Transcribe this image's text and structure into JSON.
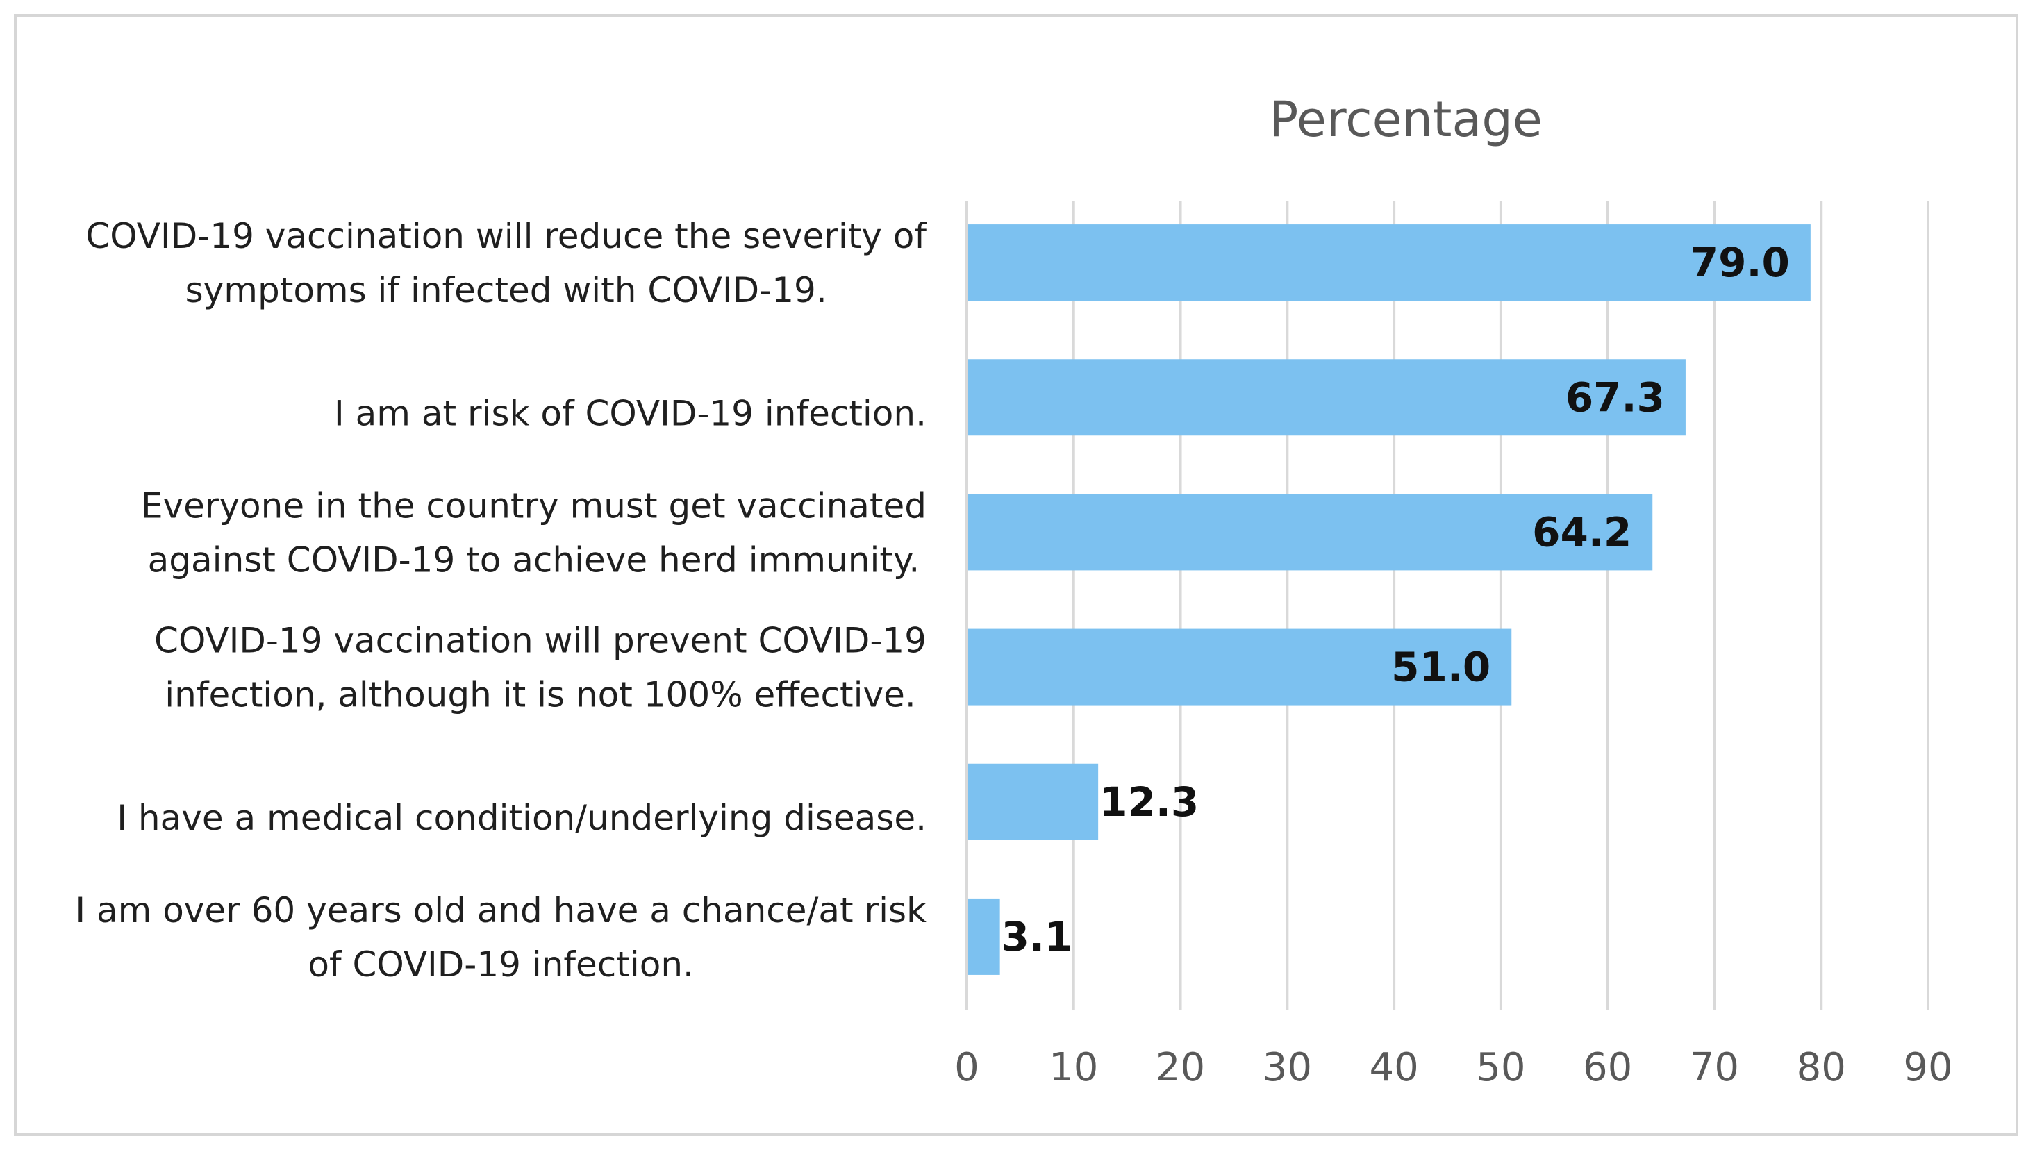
{
  "chart_data": {
    "type": "bar",
    "orientation": "horizontal",
    "title": "Percentage",
    "xlabel": "",
    "ylabel": "",
    "xlim": [
      0,
      90
    ],
    "ticks": [
      0,
      10,
      20,
      30,
      40,
      50,
      60,
      70,
      80,
      90
    ],
    "grid": "vertical",
    "bar_color": "#7cc1f0",
    "categories": [
      [
        "COVID-19 vaccination will reduce the severity of",
        "symptoms if infected with COVID-19."
      ],
      [
        "I am at risk of COVID-19 infection."
      ],
      [
        "Everyone in the country must get vaccinated",
        "against COVID-19 to achieve herd immunity."
      ],
      [
        "COVID-19 vaccination will prevent COVID-19",
        "infection, although it is not 100% effective."
      ],
      [
        "I have a medical condition/underlying disease."
      ],
      [
        "I am over 60 years old and have a chance/at risk",
        "of COVID-19 infection."
      ]
    ],
    "values": [
      79.0,
      67.3,
      64.2,
      51.0,
      12.3,
      3.1
    ],
    "value_labels": [
      "79.0",
      "67.3",
      "64.2",
      "51.0",
      "12.3",
      "3.1"
    ]
  }
}
